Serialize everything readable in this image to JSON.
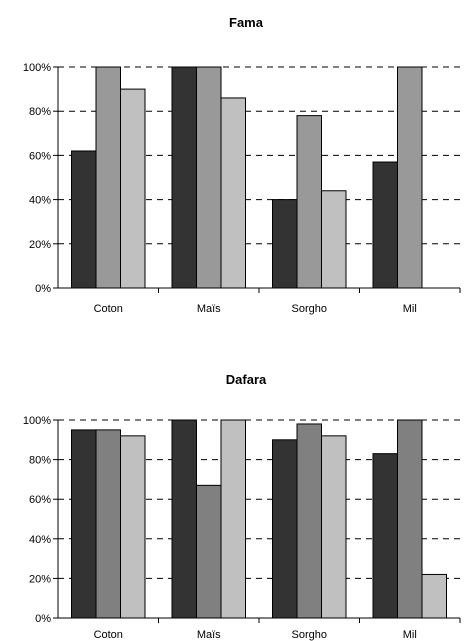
{
  "chart_data": [
    {
      "type": "bar",
      "title": "Fama",
      "categories": [
        "Coton",
        "Maïs",
        "Sorgho",
        "Mil"
      ],
      "ylim": [
        0,
        100
      ],
      "yticks": [
        "0%",
        "20%",
        "40%",
        "60%",
        "80%",
        "100%"
      ],
      "grid": "dashed horizontal",
      "series": [
        {
          "values": [
            62,
            100,
            40,
            57
          ],
          "color": "#333333"
        },
        {
          "values": [
            100,
            100,
            78,
            100
          ],
          "color": "#999999"
        },
        {
          "values": [
            90,
            86,
            44,
            null
          ],
          "color": "#c0c0c0"
        }
      ]
    },
    {
      "type": "bar",
      "title": "Dafara",
      "categories": [
        "Coton",
        "Maïs",
        "Sorgho",
        "Mil"
      ],
      "ylim": [
        0,
        100
      ],
      "yticks": [
        "0%",
        "20%",
        "40%",
        "60%",
        "80%",
        "100%"
      ],
      "grid": "dashed horizontal",
      "series": [
        {
          "values": [
            95,
            100,
            90,
            83
          ],
          "color": "#333333"
        },
        {
          "values": [
            95,
            67,
            98,
            100
          ],
          "color": "#808080"
        },
        {
          "values": [
            92,
            100,
            92,
            22
          ],
          "color": "#c0c0c0"
        }
      ]
    }
  ]
}
